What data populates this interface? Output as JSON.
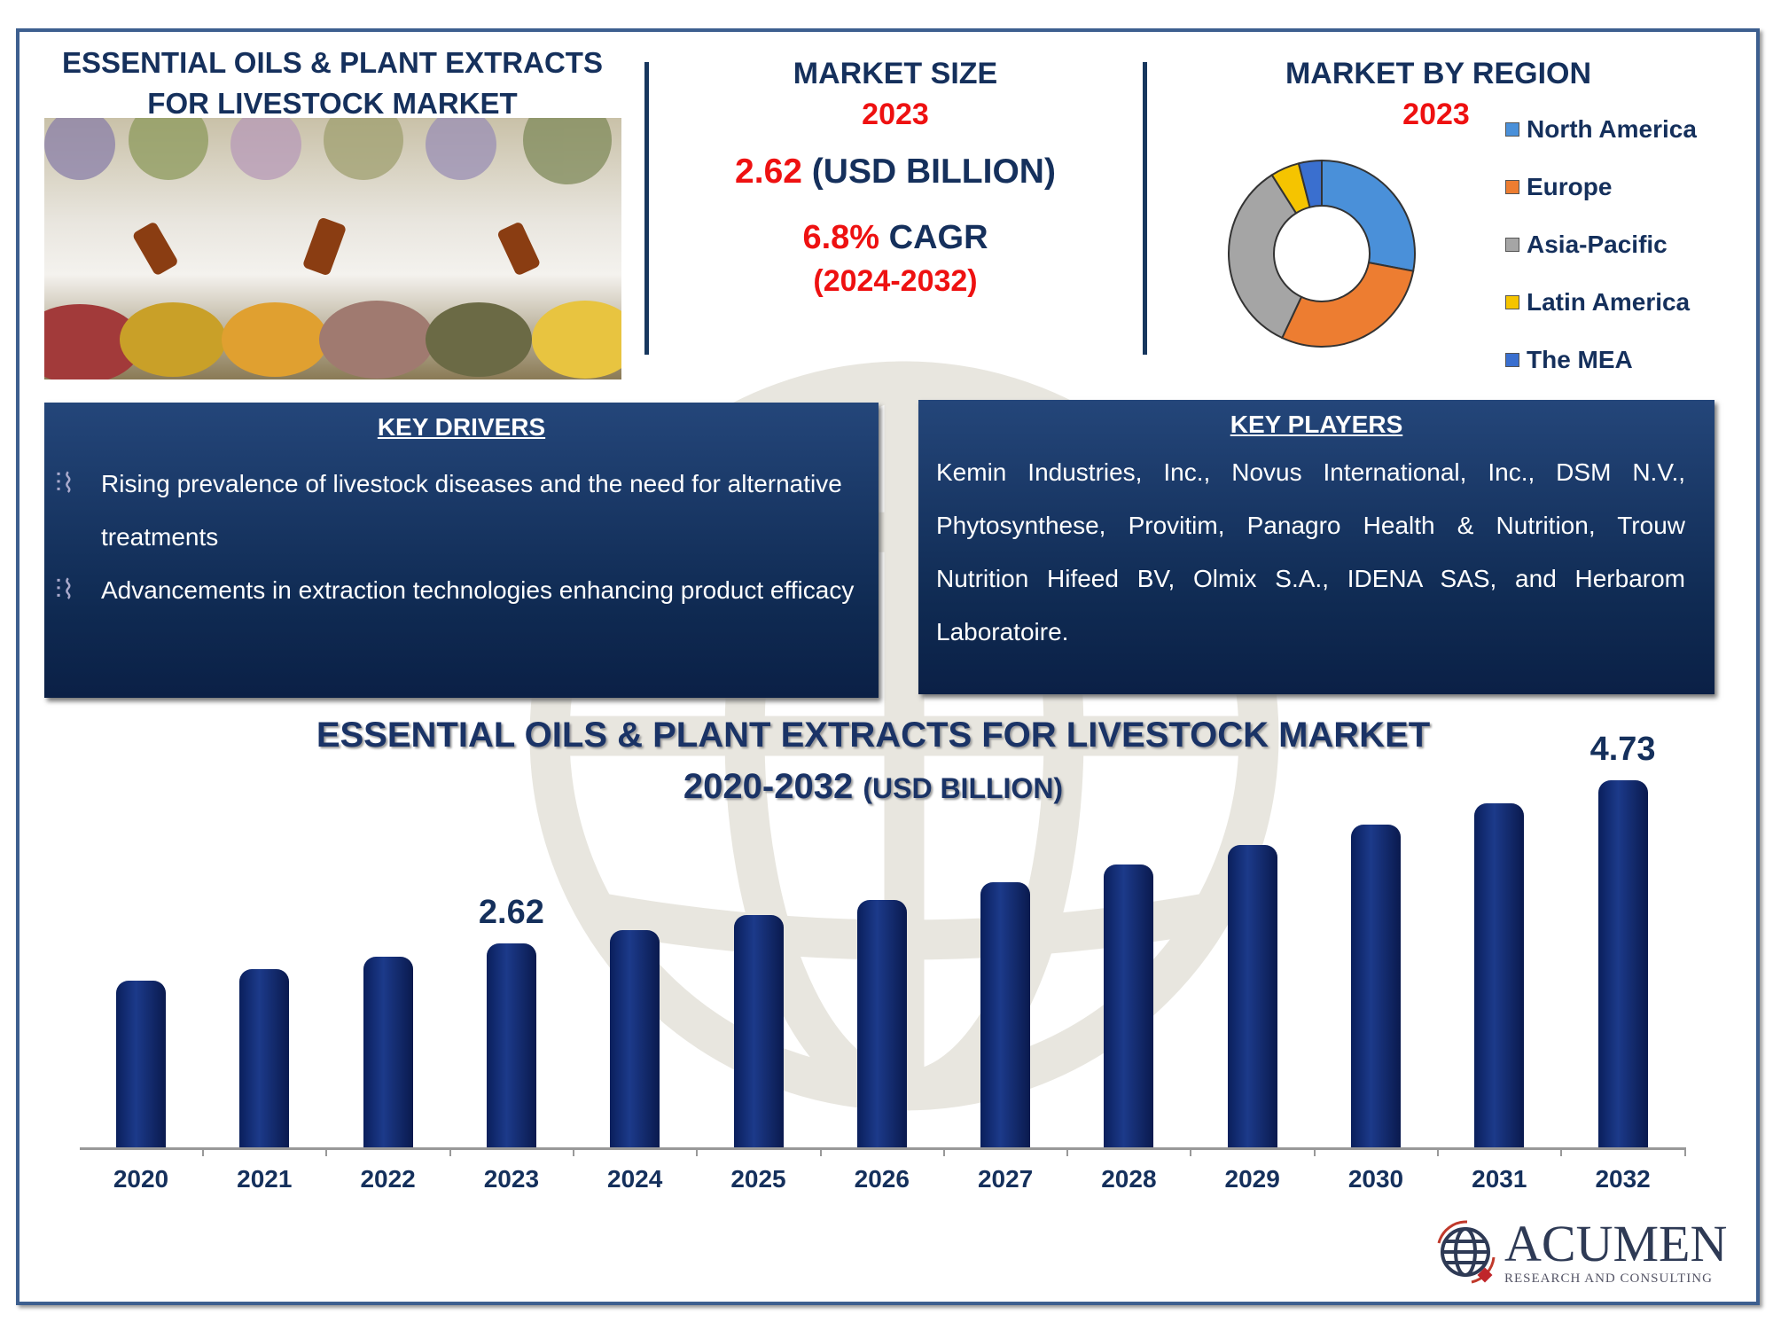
{
  "header": {
    "title": "ESSENTIAL OILS & PLANT EXTRACTS FOR LIVESTOCK MARKET"
  },
  "market_size": {
    "heading": "MARKET SIZE",
    "year": "2023",
    "value": "2.62",
    "unit": "(USD BILLION)",
    "cagr": "6.8%",
    "cagr_label": "CAGR",
    "period": "(2024-2032)"
  },
  "region": {
    "heading": "MARKET BY REGION",
    "year": "2023",
    "legend": [
      {
        "name": "North America",
        "color": "#4a90d9",
        "share": 28
      },
      {
        "name": "Europe",
        "color": "#ed7d31",
        "share": 29
      },
      {
        "name": "Asia-Pacific",
        "color": "#a5a5a5",
        "share": 34
      },
      {
        "name": "Latin America",
        "color": "#f5c400",
        "share": 5
      },
      {
        "name": "The MEA",
        "color": "#3a6fcf",
        "share": 4
      }
    ]
  },
  "key_drivers": {
    "heading": "KEY DRIVERS",
    "items": [
      "Rising prevalence of livestock diseases and the need for alternative treatments",
      "Advancements in extraction technologies enhancing product efficacy"
    ]
  },
  "key_players": {
    "heading": "KEY PLAYERS",
    "text": "Kemin Industries, Inc., Novus International, Inc., DSM N.V., Phytosynthese, Provitim, Panagro Health & Nutrition, Trouw Nutrition Hifeed BV, Olmix S.A., IDENA SAS, and Herbarom Laboratoire."
  },
  "chart_data": {
    "type": "bar",
    "title": "ESSENTIAL OILS & PLANT EXTRACTS FOR LIVESTOCK MARKET",
    "subtitle_years": "2020-2032",
    "subtitle_unit": "(USD BILLION)",
    "categories": [
      "2020",
      "2021",
      "2022",
      "2023",
      "2024",
      "2025",
      "2026",
      "2027",
      "2028",
      "2029",
      "2030",
      "2031",
      "2032"
    ],
    "values": [
      2.15,
      2.3,
      2.45,
      2.62,
      2.8,
      2.99,
      3.19,
      3.41,
      3.64,
      3.89,
      4.15,
      4.43,
      4.73
    ],
    "data_labels": {
      "2023": "2.62",
      "2032": "4.73"
    },
    "color": "#0f2560"
  },
  "logo": {
    "name": "ACUMEN",
    "tagline": "RESEARCH AND CONSULTING"
  }
}
